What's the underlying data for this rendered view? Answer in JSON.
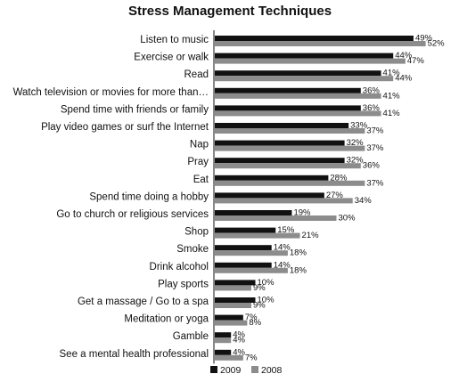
{
  "chart_data": {
    "type": "bar",
    "orientation": "horizontal",
    "title": "Stress Management Techniques",
    "categories": [
      "Listen to music",
      "Exercise or walk",
      "Read",
      "Watch television or movies for more than…",
      "Spend time with friends or family",
      "Play video games or surf the Internet",
      "Nap",
      "Pray",
      "Eat",
      "Spend time doing a hobby",
      "Go to church or religious services",
      "Shop",
      "Smoke",
      "Drink alcohol",
      "Play sports",
      "Get a massage / Go to a spa",
      "Meditation or yoga",
      "Gamble",
      "See a mental health professional"
    ],
    "series": [
      {
        "name": "2009",
        "color": "#111111",
        "values": [
          49,
          44,
          41,
          36,
          36,
          33,
          32,
          32,
          28,
          27,
          19,
          15,
          14,
          14,
          10,
          10,
          7,
          4,
          4
        ],
        "labels": [
          "49%",
          "44%",
          "41%",
          "36%",
          "36%",
          "33%",
          "32%",
          "32%",
          "28%",
          "27%",
          "19%",
          "15%",
          "14%",
          "14%",
          "10%",
          "10%",
          "7%",
          "4%",
          "4%"
        ]
      },
      {
        "name": "2008",
        "color": "#8c8c8c",
        "values": [
          52,
          47,
          44,
          41,
          41,
          37,
          37,
          36,
          37,
          34,
          30,
          21,
          18,
          18,
          9,
          9,
          8,
          4,
          7
        ],
        "labels": [
          "52%",
          "47%",
          "44%",
          "41%",
          "41%",
          "37%",
          "37%",
          "36%",
          "37%",
          "34%",
          "30%",
          "21%",
          "18%",
          "18%",
          "9%",
          "9%",
          "8%",
          "4%",
          "7%"
        ]
      }
    ],
    "xlim": [
      0,
      52
    ],
    "grid": false,
    "legend": "bottom"
  }
}
